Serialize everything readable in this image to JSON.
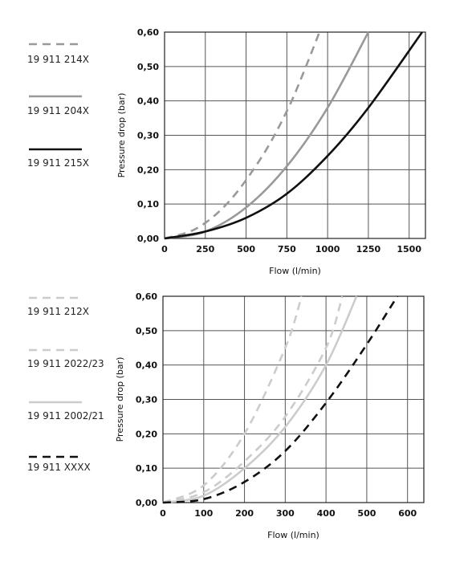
{
  "chart_data": [
    {
      "type": "line",
      "xlabel": "Flow (l/min)",
      "ylabel": "Pressure drop (bar)",
      "xlim": [
        0,
        1600
      ],
      "ylim": [
        0,
        0.6
      ],
      "x_ticks": [
        "0",
        "250",
        "500",
        "750",
        "1000",
        "1250",
        "1500"
      ],
      "y_ticks": [
        "0,00",
        "0,10",
        "0,20",
        "0,30",
        "0,40",
        "0,50",
        "0,60"
      ],
      "grid": true,
      "legend_position": "left",
      "series": [
        {
          "name": "19 911 214X",
          "color": "#999999",
          "style": "dashed",
          "x": [
            0,
            200,
            400,
            600,
            750,
            850,
            950
          ],
          "y": [
            0,
            0.03,
            0.11,
            0.24,
            0.37,
            0.48,
            0.6
          ]
        },
        {
          "name": "19 911 204X",
          "color": "#999999",
          "style": "solid",
          "x": [
            0,
            250,
            500,
            750,
            1000,
            1250
          ],
          "y": [
            0,
            0.02,
            0.09,
            0.21,
            0.38,
            0.6
          ]
        },
        {
          "name": "19 911 215X",
          "color": "#111111",
          "style": "solid",
          "x": [
            0,
            250,
            500,
            750,
            1000,
            1250,
            1580
          ],
          "y": [
            0,
            0.02,
            0.06,
            0.13,
            0.24,
            0.38,
            0.6
          ]
        }
      ]
    },
    {
      "type": "line",
      "xlabel": "Flow (l/min)",
      "ylabel": "Pressure drop (bar)",
      "xlim": [
        0,
        640
      ],
      "ylim": [
        0,
        0.6
      ],
      "x_ticks": [
        "0",
        "100",
        "200",
        "300",
        "400",
        "500",
        "600"
      ],
      "y_ticks": [
        "0,00",
        "0,10",
        "0,20",
        "0,30",
        "0,40",
        "0,50",
        "0,60"
      ],
      "grid": true,
      "legend_position": "left",
      "series": [
        {
          "name": "19 911 212X",
          "color": "#cccccc",
          "style": "dashed",
          "x": [
            0,
            100,
            200,
            300,
            340
          ],
          "y": [
            0,
            0.05,
            0.2,
            0.45,
            0.6
          ]
        },
        {
          "name": "19 911 2022/23",
          "color": "#cccccc",
          "style": "dashed",
          "x": [
            0,
            100,
            200,
            300,
            400,
            440
          ],
          "y": [
            0,
            0.03,
            0.12,
            0.25,
            0.45,
            0.6
          ]
        },
        {
          "name": "19 911 2002/21",
          "color": "#cccccc",
          "style": "solid",
          "x": [
            0,
            100,
            200,
            300,
            400,
            475
          ],
          "y": [
            0,
            0.02,
            0.1,
            0.22,
            0.4,
            0.6
          ]
        },
        {
          "name": "19 911 XXXX",
          "color": "#111111",
          "style": "dashed",
          "x": [
            0,
            100,
            200,
            300,
            400,
            500,
            575
          ],
          "y": [
            0,
            0.01,
            0.06,
            0.15,
            0.29,
            0.46,
            0.6
          ]
        }
      ]
    }
  ]
}
